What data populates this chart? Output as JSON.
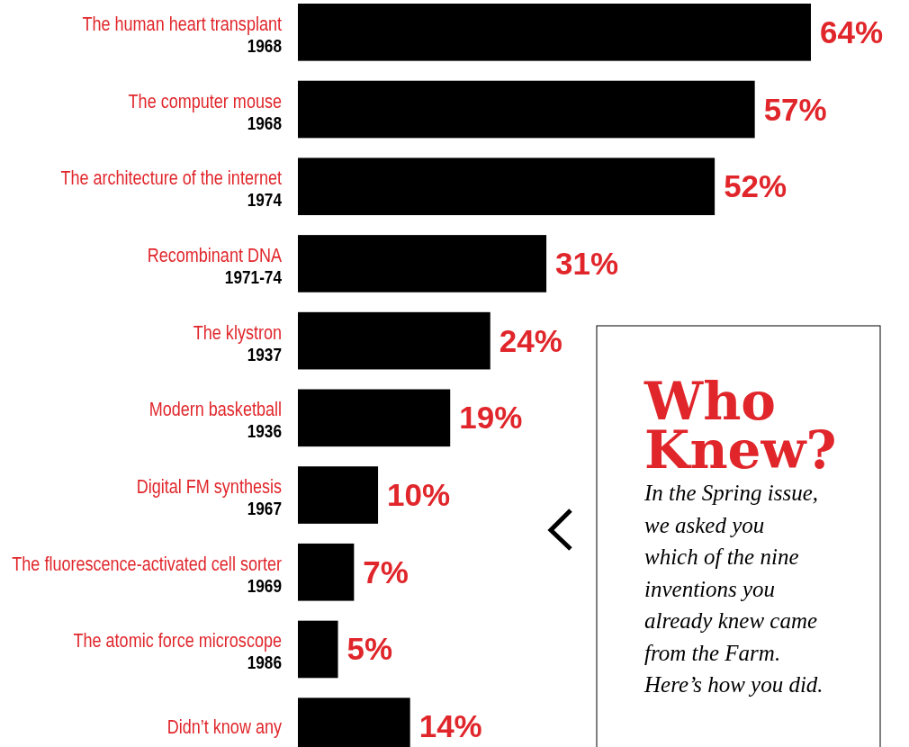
{
  "chart_data": {
    "type": "bar",
    "orientation": "horizontal",
    "title": "Who Knew?",
    "subtitle": "In the Spring issue,\nwe asked you\nwhich of the nine\ninventions you\nalready knew came\nfrom the Farm.\nHere’s how you did.",
    "categories": [
      "The human heart transplant\n1968",
      "The computer mouse\n1968",
      "The architecture of the internet\n1974",
      "Recombinant DNA\n1971-74",
      "The klystron\n1937",
      "Modern basketball\n1936",
      "Digital FM synthesis\n1967",
      "The fluorescence-activated cell sorter\n1969",
      "The atomic force microscope\n1986",
      "Didn’t know any"
    ],
    "values": [
      64,
      57,
      52,
      31,
      24,
      19,
      10,
      7,
      5,
      14
    ],
    "value_labels": [
      "64%",
      "57%",
      "52%",
      "31%",
      "24%",
      "19%",
      "10%",
      "7%",
      "5%",
      "14%"
    ],
    "color": "#000000",
    "tick_labels": "y"
  }
}
